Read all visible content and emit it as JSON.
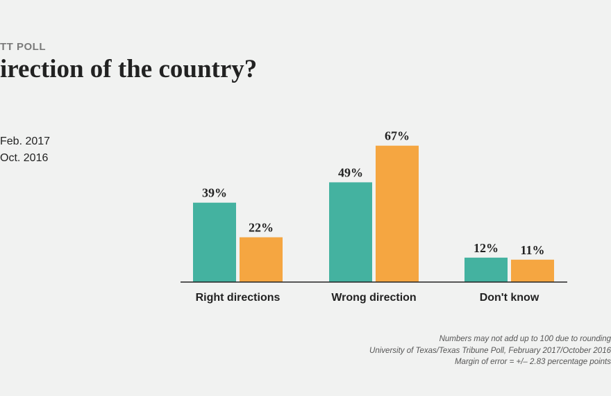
{
  "header": {
    "kicker": "TT POLL",
    "title": "irection of the country?"
  },
  "legend": [
    {
      "label": "Feb. 2017",
      "color": "#44b2a0"
    },
    {
      "label": "Oct. 2016",
      "color": "#f5a641"
    }
  ],
  "chart_data": {
    "type": "bar",
    "categories": [
      "Right directions",
      "Wrong direction",
      "Don't know"
    ],
    "series": [
      {
        "name": "Feb. 2017",
        "values": [
          39,
          49,
          12
        ],
        "labels": [
          "39%",
          "49%",
          "12%"
        ],
        "color": "#44b2a0"
      },
      {
        "name": "Oct. 2016",
        "values": [
          22,
          67,
          11
        ],
        "labels": [
          "22%",
          "67%",
          "11%"
        ],
        "color": "#f5a641"
      }
    ],
    "ylim": [
      0,
      70
    ],
    "grid": false,
    "legend_position": "top-left"
  },
  "notes": [
    "Numbers may not add up to 100 due to rounding",
    "University of Texas/Texas Tribune Poll, February 2017/October 2016",
    "Margin of error = +/– 2.83 percentage points"
  ]
}
